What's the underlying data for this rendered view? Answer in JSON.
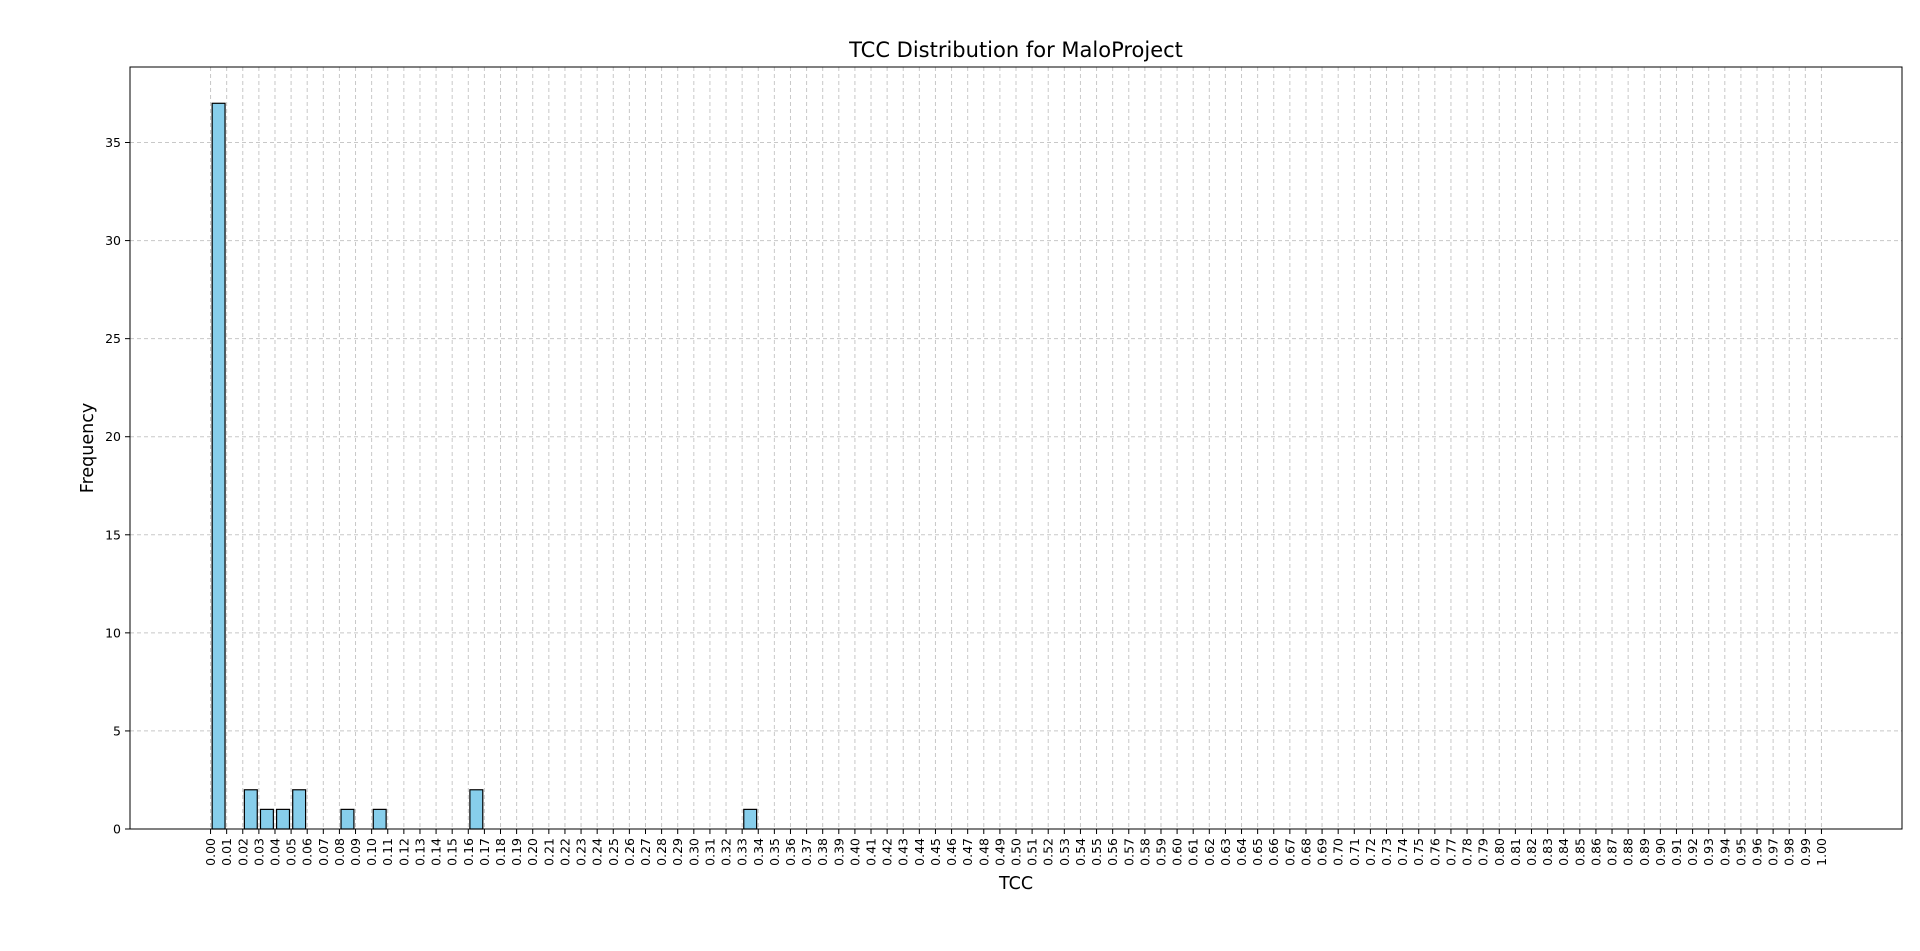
{
  "chart_data": {
    "type": "bar",
    "title": "TCC Distribution for MaloProject",
    "xlabel": "TCC",
    "ylabel": "Frequency",
    "categories": [
      "0.00",
      "0.01",
      "0.02",
      "0.03",
      "0.04",
      "0.05",
      "0.06",
      "0.07",
      "0.08",
      "0.09",
      "0.10",
      "0.11",
      "0.12",
      "0.13",
      "0.14",
      "0.15",
      "0.16",
      "0.17",
      "0.18",
      "0.19",
      "0.20",
      "0.21",
      "0.22",
      "0.23",
      "0.24",
      "0.25",
      "0.26",
      "0.27",
      "0.28",
      "0.29",
      "0.30",
      "0.31",
      "0.32",
      "0.33",
      "0.34",
      "0.35",
      "0.36",
      "0.37",
      "0.38",
      "0.39",
      "0.40",
      "0.41",
      "0.42",
      "0.43",
      "0.44",
      "0.45",
      "0.46",
      "0.47",
      "0.48",
      "0.49",
      "0.50",
      "0.51",
      "0.52",
      "0.53",
      "0.54",
      "0.55",
      "0.56",
      "0.57",
      "0.58",
      "0.59",
      "0.60",
      "0.61",
      "0.62",
      "0.63",
      "0.64",
      "0.65",
      "0.66",
      "0.67",
      "0.68",
      "0.69",
      "0.70",
      "0.71",
      "0.72",
      "0.73",
      "0.74",
      "0.75",
      "0.76",
      "0.77",
      "0.78",
      "0.79",
      "0.80",
      "0.81",
      "0.82",
      "0.83",
      "0.84",
      "0.85",
      "0.86",
      "0.87",
      "0.88",
      "0.89",
      "0.90",
      "0.91",
      "0.92",
      "0.93",
      "0.94",
      "0.95",
      "0.96",
      "0.97",
      "0.98",
      "0.99",
      "1.00"
    ],
    "bars": [
      {
        "x": 0.005,
        "value": 37
      },
      {
        "x": 0.025,
        "value": 2
      },
      {
        "x": 0.035,
        "value": 1
      },
      {
        "x": 0.045,
        "value": 1
      },
      {
        "x": 0.055,
        "value": 2
      },
      {
        "x": 0.085,
        "value": 1
      },
      {
        "x": 0.105,
        "value": 1
      },
      {
        "x": 0.165,
        "value": 2
      },
      {
        "x": 0.335,
        "value": 1
      }
    ],
    "bar_width": 0.008,
    "yticks": [
      0,
      5,
      10,
      15,
      20,
      25,
      30,
      35
    ],
    "xlim": [
      -0.05,
      1.05
    ],
    "ylim": [
      0,
      38.85
    ],
    "grid": true,
    "bar_color": "#87ceeb",
    "edge_color": "#000000"
  }
}
